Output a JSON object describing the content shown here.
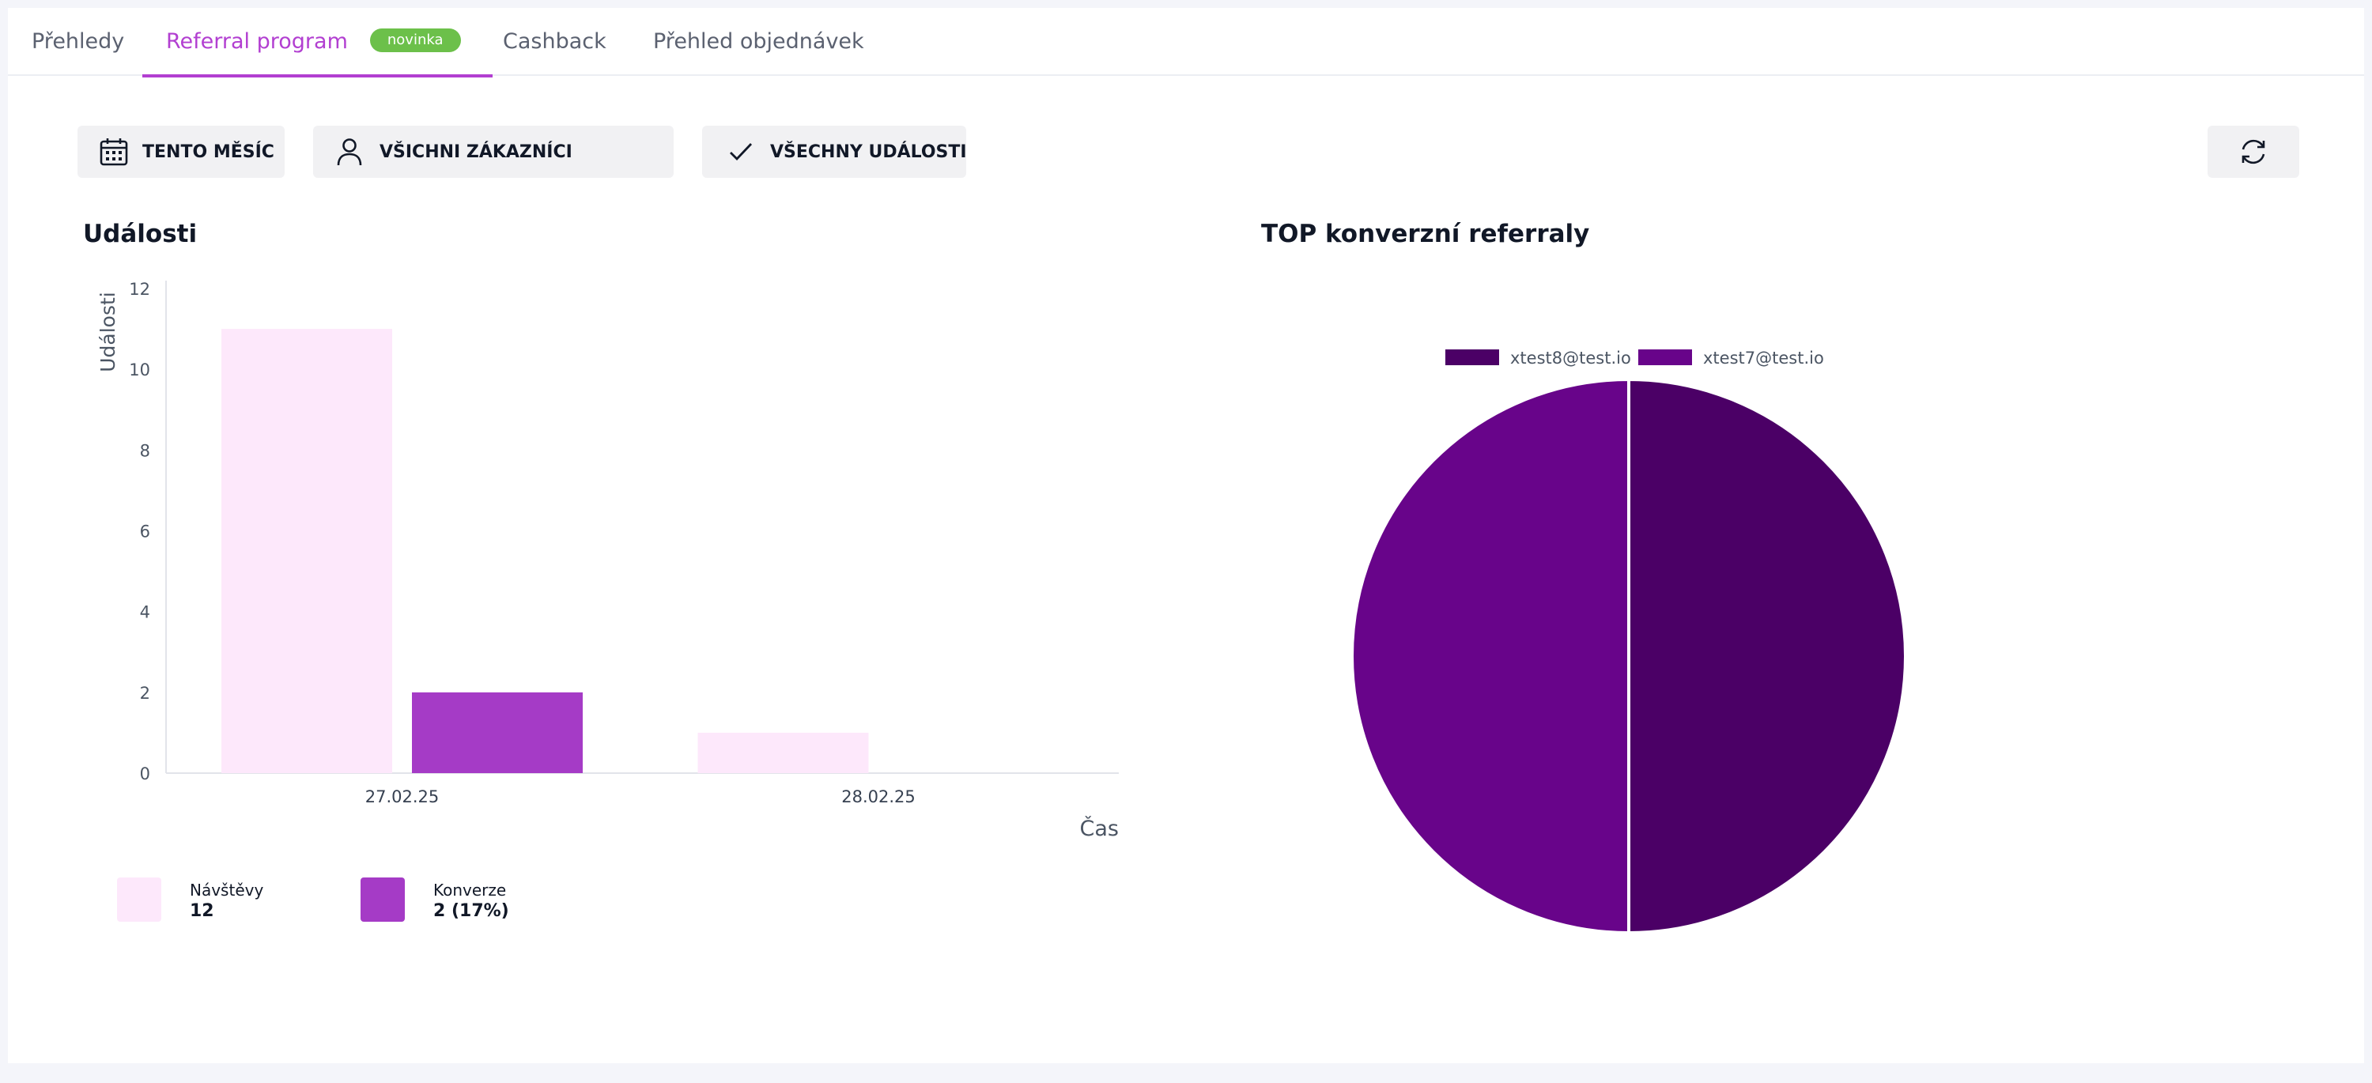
{
  "tabs": [
    {
      "label": "Přehledy",
      "active": false
    },
    {
      "label": "Referral program",
      "active": true,
      "badge": "novinka"
    },
    {
      "label": "Cashback",
      "active": false
    },
    {
      "label": "Přehled objednávek",
      "active": false
    }
  ],
  "filters": {
    "period": {
      "label": "TENTO MĚSÍC",
      "icon": "calendar-icon"
    },
    "customers": {
      "label": "VŠICHNI ZÁKAZNÍCI",
      "icon": "user-icon"
    },
    "events": {
      "label": "VŠECHNY UDÁLOSTI",
      "icon": "check-icon"
    },
    "refresh": {
      "icon": "refresh-icon"
    }
  },
  "events_section": {
    "title": "Události"
  },
  "top_section": {
    "title": "TOP konverzní referraly"
  },
  "legend": [
    {
      "name": "Návštěvy",
      "value": "12",
      "color": "#fde8fb"
    },
    {
      "name": "Konverze",
      "value": "2 (17%)",
      "color": "#a53bc6"
    }
  ],
  "colors": {
    "accent": "#b23fd1",
    "badge": "#6cc04a"
  },
  "chart_data": [
    {
      "type": "bar",
      "title": "Události",
      "categories": [
        "27.02.25",
        "28.02.25"
      ],
      "series": [
        {
          "name": "Návštěvy",
          "values": [
            11,
            1
          ],
          "color": "#fde8fb"
        },
        {
          "name": "Konverze",
          "values": [
            2,
            0
          ],
          "color": "#a53bc6"
        }
      ],
      "xlabel": "Čas",
      "ylabel": "Události",
      "ylim": [
        0,
        12
      ],
      "yticks": [
        0,
        2,
        4,
        6,
        8,
        10,
        12
      ],
      "grid": false,
      "legend": "bottom-left"
    },
    {
      "type": "pie",
      "title": "TOP konverzní referraly",
      "slices": [
        {
          "label": "xtest8@test.io",
          "value": 1,
          "color": "#4b0066"
        },
        {
          "label": "xtest7@test.io",
          "value": 1,
          "color": "#68048a"
        }
      ],
      "legend": "top"
    }
  ]
}
